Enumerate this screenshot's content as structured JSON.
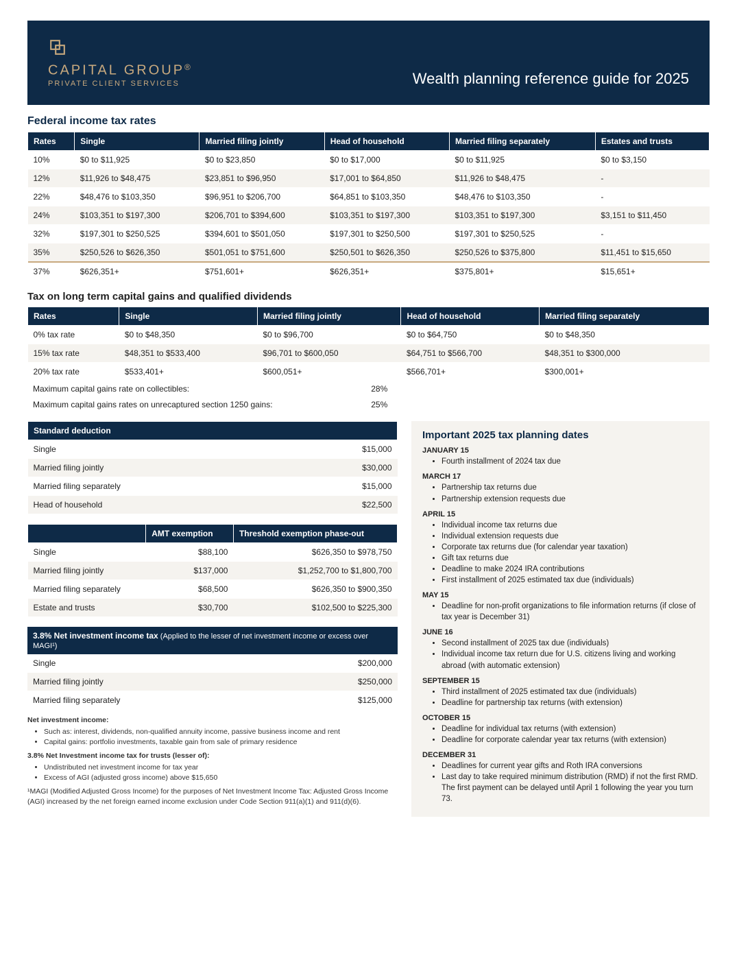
{
  "colors": {
    "navy": "#0e2a47",
    "gold": "#c8a97e",
    "cream": "#f5f3ef",
    "white": "#ffffff",
    "text": "#222222"
  },
  "header": {
    "logo_name": "CAPITAL GROUP",
    "logo_reg": "®",
    "logo_sub": "PRIVATE CLIENT SERVICES",
    "title": "Wealth planning reference guide for 2025"
  },
  "fed_rates": {
    "title": "Federal income tax rates",
    "columns": [
      "Rates",
      "Single",
      "Married filing jointly",
      "Head of household",
      "Married filing separately",
      "Estates and trusts"
    ],
    "rows": [
      [
        "10%",
        "$0 to $11,925",
        "$0 to $23,850",
        "$0 to $17,000",
        "$0 to $11,925",
        "$0 to $3,150"
      ],
      [
        "12%",
        "$11,926 to $48,475",
        "$23,851 to $96,950",
        "$17,001 to $64,850",
        "$11,926 to $48,475",
        "-"
      ],
      [
        "22%",
        "$48,476 to $103,350",
        "$96,951 to $206,700",
        "$64,851 to $103,350",
        "$48,476 to $103,350",
        "-"
      ],
      [
        "24%",
        "$103,351 to $197,300",
        "$206,701 to $394,600",
        "$103,351 to $197,300",
        "$103,351 to $197,300",
        "$3,151 to $11,450"
      ],
      [
        "32%",
        "$197,301 to $250,525",
        "$394,601 to $501,050",
        "$197,301 to $250,500",
        "$197,301 to $250,525",
        "-"
      ],
      [
        "35%",
        "$250,526 to $626,350",
        "$501,051 to $751,600",
        "$250,501 to $626,350",
        "$250,526 to $375,800",
        "$11,451 to $15,650"
      ],
      [
        "37%",
        "$626,351+",
        "$751,601+",
        "$626,351+",
        "$375,801+",
        "$15,651+"
      ]
    ]
  },
  "cap_gains": {
    "title": "Tax on long term capital gains and qualified dividends",
    "columns": [
      "Rates",
      "Single",
      "Married filing jointly",
      "Head of household",
      "Married filing separately"
    ],
    "rows": [
      [
        "0% tax rate",
        "$0 to $48,350",
        "$0 to $96,700",
        "$0 to $64,750",
        "$0 to $48,350"
      ],
      [
        "15% tax rate",
        "$48,351 to $533,400",
        "$96,701 to $600,050",
        "$64,751 to $566,700",
        "$48,351 to $300,000"
      ],
      [
        "20% tax rate",
        "$533,401+",
        "$600,051+",
        "$566,701+",
        "$300,001+"
      ]
    ],
    "extra": [
      [
        "Maximum capital gains rate on collectibles:",
        "28%"
      ],
      [
        "Maximum capital gains rates on unrecaptured section 1250 gains:",
        "25%"
      ]
    ]
  },
  "std_deduction": {
    "header": "Standard deduction",
    "rows": [
      [
        "Single",
        "$15,000"
      ],
      [
        "Married filing jointly",
        "$30,000"
      ],
      [
        "Married filing separately",
        "$15,000"
      ],
      [
        "Head of household",
        "$22,500"
      ]
    ]
  },
  "amt": {
    "columns": [
      "",
      "AMT exemption",
      "Threshold exemption phase-out"
    ],
    "rows": [
      [
        "Single",
        "$88,100",
        "$626,350 to $978,750"
      ],
      [
        "Married filing jointly",
        "$137,000",
        "$1,252,700 to $1,800,700"
      ],
      [
        "Married filing separately",
        "$68,500",
        "$626,350 to $900,350"
      ],
      [
        "Estate and trusts",
        "$30,700",
        "$102,500 to $225,300"
      ]
    ]
  },
  "niit": {
    "header_bold": "3.8% Net investment income tax",
    "header_light": " (Applied to the lesser of net investment income or excess over MAGI¹)",
    "rows": [
      [
        "Single",
        "$200,000"
      ],
      [
        "Married filing jointly",
        "$250,000"
      ],
      [
        "Married filing separately",
        "$125,000"
      ]
    ],
    "notes": {
      "nii_label": "Net investment income:",
      "nii_bullets": [
        "Such as: interest, dividends, non-qualified annuity income, passive business income and rent",
        "Capital gains: portfolio investments, taxable gain from sale of primary residence"
      ],
      "trust_label": "3.8% Net Investment income tax for trusts (lesser of):",
      "trust_bullets": [
        "Undistributed net investment income for tax year",
        "Excess of AGI (adjusted gross income) above $15,650"
      ],
      "footnote": "¹MAGI (Modified Adjusted Gross Income) for the purposes of Net Investment Income Tax: Adjusted Gross Income (AGI) increased by the net foreign earned income exclusion under Code Section 911(a)(1) and 911(d)(6)."
    }
  },
  "dates": {
    "title": "Important 2025 tax planning dates",
    "groups": [
      {
        "h": "JANUARY 15",
        "items": [
          "Fourth installment of 2024 tax due"
        ]
      },
      {
        "h": "MARCH 17",
        "items": [
          "Partnership tax returns due",
          "Partnership extension requests due"
        ]
      },
      {
        "h": "APRIL 15",
        "items": [
          "Individual income tax returns due",
          "Individual extension requests due",
          "Corporate tax returns due (for calendar year taxation)",
          "Gift tax returns due",
          "Deadline to make 2024 IRA contributions",
          "First installment of 2025 estimated tax due (individuals)"
        ]
      },
      {
        "h": "MAY 15",
        "items": [
          "Deadline for non-profit organizations to file information returns (if close of tax year is December 31)"
        ]
      },
      {
        "h": "JUNE 16",
        "items": [
          "Second installment of 2025 tax due (individuals)",
          "Individual income tax return due for U.S. citizens living and working abroad (with automatic extension)"
        ]
      },
      {
        "h": "SEPTEMBER 15",
        "items": [
          "Third installment of 2025 estimated tax due (individuals)",
          "Deadline for partnership tax returns (with extension)"
        ]
      },
      {
        "h": "OCTOBER 15",
        "items": [
          "Deadline for individual tax returns (with extension)",
          "Deadline for corporate calendar year tax returns (with extension)"
        ]
      },
      {
        "h": "DECEMBER 31",
        "items": [
          "Deadlines for current year gifts and Roth IRA conversions",
          "Last day to take required minimum distribution (RMD) if not the first RMD. The first payment can be delayed until April 1 following the year you turn 73."
        ]
      }
    ]
  }
}
